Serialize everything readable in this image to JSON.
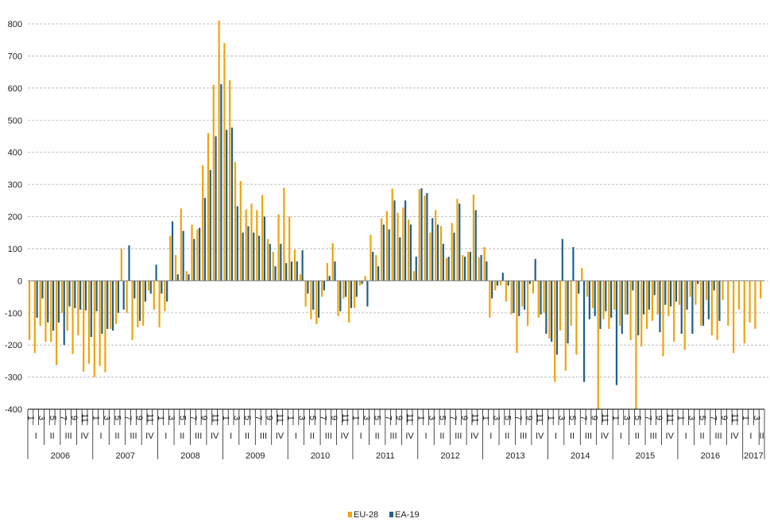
{
  "chart_data": {
    "type": "bar",
    "title": "",
    "xlabel": "",
    "ylabel": "",
    "ylim": [
      -400,
      800
    ],
    "yticks": [
      800,
      700,
      600,
      500,
      400,
      300,
      200,
      100,
      0,
      -100,
      -200,
      -300,
      -400
    ],
    "grid": "horizontal dashed",
    "legend_position": "bottom-center",
    "years": [
      "2006",
      "2007",
      "2008",
      "2009",
      "2010",
      "2011",
      "2012",
      "2013",
      "2014",
      "2015",
      "2016",
      "2017"
    ],
    "quarter_labels": [
      "I",
      "II",
      "III",
      "IV"
    ],
    "month_labels": [
      "1",
      "3",
      "5",
      "7",
      "9",
      "11"
    ],
    "colors": {
      "EU-28": "#f0a30a",
      "EA-19": "#1f5f8b",
      "grid": "#b0b0b0",
      "axis": "#000000"
    },
    "series": [
      {
        "name": "EU-28",
        "values": [
          -185,
          -225,
          -140,
          -190,
          -190,
          -262,
          -100,
          -155,
          -228,
          -170,
          -283,
          -258,
          -300,
          -265,
          -285,
          -150,
          -135,
          100,
          -100,
          -185,
          -145,
          -140,
          -30,
          -90,
          -145,
          -95,
          140,
          80,
          225,
          30,
          175,
          160,
          360,
          460,
          610,
          810,
          740,
          625,
          370,
          310,
          222,
          240,
          220,
          267,
          130,
          90,
          207,
          290,
          200,
          97,
          20,
          -80,
          -120,
          -135,
          -50,
          55,
          117,
          -110,
          -55,
          -130,
          -85,
          -15,
          15,
          143,
          80,
          195,
          217,
          287,
          212,
          228,
          190,
          30,
          285,
          265,
          150,
          220,
          170,
          70,
          180,
          255,
          80,
          90,
          268,
          73,
          105,
          -115,
          -30,
          -15,
          -65,
          -105,
          -225,
          -80,
          -140,
          -40,
          -115,
          -100,
          -180,
          -315,
          -155,
          -280,
          -140,
          -230,
          40,
          -50,
          -85,
          -400,
          -120,
          -150,
          -90,
          -140,
          -105,
          -185,
          -400,
          -205,
          -150,
          -125,
          -105,
          -235,
          -110,
          -190,
          -75,
          -215,
          -50,
          -75,
          -140,
          -60,
          -170,
          -185,
          -60,
          -140,
          -225,
          -90,
          -195,
          -130,
          -150,
          -55
        ],
        "values_start": "2006-01"
      },
      {
        "name": "EA-19",
        "values": [
          -115,
          -55,
          -130,
          -155,
          -130,
          -200,
          -80,
          -85,
          -90,
          -92,
          -175,
          -95,
          -165,
          -150,
          -155,
          -100,
          -90,
          110,
          -55,
          -125,
          -65,
          -40,
          50,
          -40,
          -65,
          185,
          20,
          155,
          20,
          130,
          165,
          258,
          345,
          450,
          612,
          470,
          477,
          232,
          150,
          170,
          150,
          140,
          200,
          115,
          45,
          115,
          55,
          60,
          60,
          95,
          -40,
          -90,
          -115,
          -30,
          15,
          60,
          -95,
          -50,
          -85,
          -50,
          -10,
          -80,
          90,
          45,
          175,
          160,
          250,
          135,
          250,
          175,
          75,
          288,
          273,
          195,
          175,
          115,
          75,
          150,
          240,
          75,
          90,
          220,
          80,
          60,
          -55,
          -15,
          25,
          -15,
          -100,
          -110,
          -90,
          -10,
          68,
          -105,
          -165,
          -190,
          -230,
          130,
          -195,
          105,
          -40,
          -315,
          -120,
          -110,
          -150,
          -95,
          -115,
          -325,
          -165,
          -105,
          -30,
          -170,
          -105,
          -90,
          -45,
          -160,
          -75,
          -80,
          -65,
          -165,
          -90,
          -165,
          -10,
          -140,
          -120,
          -30,
          -125
        ],
        "values_start": "2006-02"
      }
    ]
  }
}
